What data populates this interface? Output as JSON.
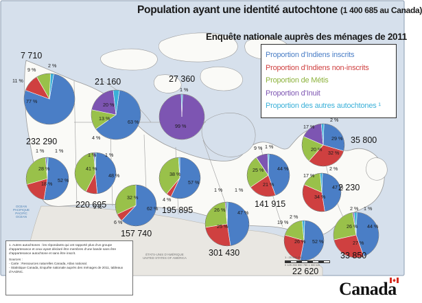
{
  "title": {
    "main": "Population ayant une identité autochtone",
    "total": "(1 400 685 au Canada)",
    "subtitle": "Enquête nationale auprès des ménages de 2011"
  },
  "legend": {
    "items": [
      {
        "label": "Proportion d’Indiens inscrits",
        "color": "#4a7ec6"
      },
      {
        "label": "Proportion d’Indiens non-inscrits",
        "color": "#cf4040"
      },
      {
        "label": "Proportion de Métis",
        "color": "#99c14a"
      },
      {
        "label": "Proportion d’Inuit",
        "color": "#7d55b2"
      },
      {
        "label": "Proportion des autres autochtones ¹",
        "color": "#3ab0d8"
      }
    ]
  },
  "chart_data": {
    "type": "pie",
    "categories": [
      "Indiens inscrits",
      "Indiens non-inscrits",
      "Métis",
      "Inuit",
      "Autres autochtones"
    ],
    "pies": [
      {
        "id": "yukon",
        "total": "7 710",
        "values": [
          77,
          11,
          9,
          0,
          2
        ],
        "labels": [
          "77 %",
          "11 %",
          "9 %",
          "",
          "2 %"
        ]
      },
      {
        "id": "nwt",
        "total": "21 160",
        "values": [
          63,
          0,
          13,
          20,
          4
        ],
        "labels": [
          "63 %",
          "",
          "13 %",
          "20 %",
          "4 %"
        ]
      },
      {
        "id": "nunavut",
        "total": "27 360",
        "values": [
          0,
          0,
          0,
          99,
          1
        ],
        "labels": [
          "",
          "",
          "",
          "99 %",
          "1 %"
        ]
      },
      {
        "id": "bc",
        "total": "232 290",
        "values": [
          52,
          18,
          28,
          1,
          1
        ],
        "labels": [
          "52 %",
          "18 %",
          "28 %",
          "1 %",
          "1 %"
        ]
      },
      {
        "id": "alberta",
        "total": "220 695",
        "values": [
          48,
          9,
          41,
          1,
          1
        ],
        "labels": [
          "48 %",
          "9 %",
          "41 %",
          "1 %",
          "1 %"
        ]
      },
      {
        "id": "saskatchewan",
        "total": "157 740",
        "values": [
          62,
          6,
          32,
          0,
          0
        ],
        "labels": [
          "62 %",
          "6 %",
          "32 %",
          "",
          ""
        ]
      },
      {
        "id": "manitoba",
        "total": "195 895",
        "values": [
          57,
          4,
          38,
          0,
          1
        ],
        "labels": [
          "57 %",
          "4 %",
          "38 %",
          "",
          ""
        ]
      },
      {
        "id": "ontario",
        "total": "301 430",
        "values": [
          47,
          25,
          26,
          1,
          1
        ],
        "labels": [
          "47 %",
          "25 %",
          "26 %",
          "1 %",
          "1 %"
        ]
      },
      {
        "id": "quebec",
        "total": "141 915",
        "values": [
          44,
          21,
          25,
          9,
          1
        ],
        "labels": [
          "44 %",
          "21 %",
          "25 %",
          "9 %",
          "1 %"
        ]
      },
      {
        "id": "nl",
        "total": "35 800",
        "values": [
          29,
          32,
          20,
          17,
          2
        ],
        "labels": [
          "29 %",
          "32 %",
          "20 %",
          "17 %",
          "2 %"
        ]
      },
      {
        "id": "pei",
        "total": "2 230",
        "values": [
          47,
          34,
          17,
          0,
          2
        ],
        "labels": [
          "47 %",
          "34 %",
          "17 %",
          "",
          "2 %"
        ]
      },
      {
        "id": "nb",
        "total": "22 620",
        "values": [
          52,
          26,
          19,
          0,
          2
        ],
        "labels": [
          "52 %",
          "26 %",
          "19 %",
          "",
          "2 %"
        ]
      },
      {
        "id": "ns",
        "total": "33 850",
        "values": [
          44,
          27,
          26,
          1,
          2
        ],
        "labels": [
          "44 %",
          "27 %",
          "26 %",
          "1 %",
          "2 %"
        ]
      }
    ]
  },
  "notes": {
    "footnote": "1. Autres autochtones : les répondants qui ont rapporté plus d’un groupe d’appartenance et ceux ayant déclaré être membres d’une bande sans être d’appartenance autochtone et sans être inscrit.",
    "sources_title": "Sources :",
    "source_1": "- Carte : Ressources naturelles Canada, Atlas national.",
    "source_2": "- Statistique Canada, Enquête nationale auprès des ménages de 2011, tableaux d’AADNC."
  },
  "map_labels": {
    "pacific": "OCEAN PACIFIQUE PACIFIC OCEAN",
    "usa": "ÉTATS-UNIS D’AMÉRIQUE UNITED STATES OF AMERICA",
    "scale_text": "1 : 25 000 000",
    "scale_ticks": "0   125   250   500   750   1 000 km"
  },
  "logo": {
    "wordmark": "Canada"
  }
}
